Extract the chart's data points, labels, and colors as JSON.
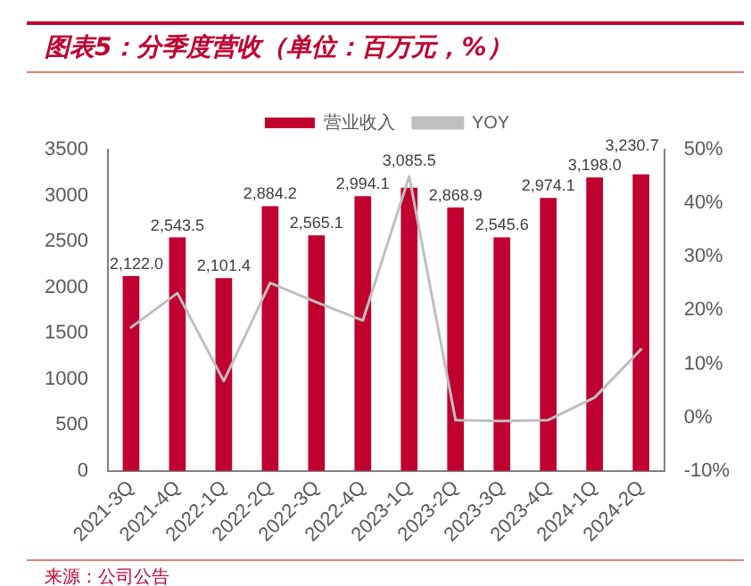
{
  "chart_data": {
    "type": "bar",
    "title": "图表5：分季度营收（单位：百万元，%）",
    "categories": [
      "2021-3Q",
      "2021-4Q",
      "2022-1Q",
      "2022-2Q",
      "2022-3Q",
      "2022-4Q",
      "2023-1Q",
      "2023-2Q",
      "2023-3Q",
      "2023-4Q",
      "2024-1Q",
      "2024-2Q"
    ],
    "series": [
      {
        "name": "营业收入",
        "color": "#c0002f",
        "values": [
          2122.0,
          2543.5,
          2101.4,
          2884.2,
          2565.1,
          2994.1,
          3085.5,
          2868.9,
          2545.6,
          2974.1,
          3198.0,
          3230.7
        ],
        "value_labels": [
          "2,122.0",
          "2,543.5",
          "2,101.4",
          "2,884.2",
          "2,565.1",
          "2,994.1",
          "3,085.5",
          "2,868.9",
          "2,545.6",
          "2,974.1",
          "3,198.0",
          "3,230.7"
        ]
      },
      {
        "name": "YOY",
        "type": "line",
        "axis": "y2",
        "color": "#bfbfbf",
        "values": [
          16.8,
          23.2,
          6.8,
          25.1,
          21.5,
          18.1,
          45,
          -0.5,
          -0.7,
          -0.5,
          3.7,
          12.7
        ]
      }
    ],
    "ylim": [
      0,
      3500
    ],
    "yticks": [
      0,
      500,
      1000,
      1500,
      2000,
      2500,
      3000,
      3500
    ],
    "y2lim": [
      -10,
      50
    ],
    "y2ticks": [
      {
        "value": -10,
        "label": "-10%"
      },
      {
        "value": 0,
        "label": "0%"
      },
      {
        "value": 10,
        "label": "10%"
      },
      {
        "value": 20,
        "label": "20%"
      },
      {
        "value": 30,
        "label": "30%"
      },
      {
        "value": 40,
        "label": "40%"
      },
      {
        "value": 50,
        "label": "50%"
      }
    ],
    "grid": false,
    "legend": "top",
    "marker": "none",
    "annotations": [
      "来源：公司公告"
    ]
  }
}
